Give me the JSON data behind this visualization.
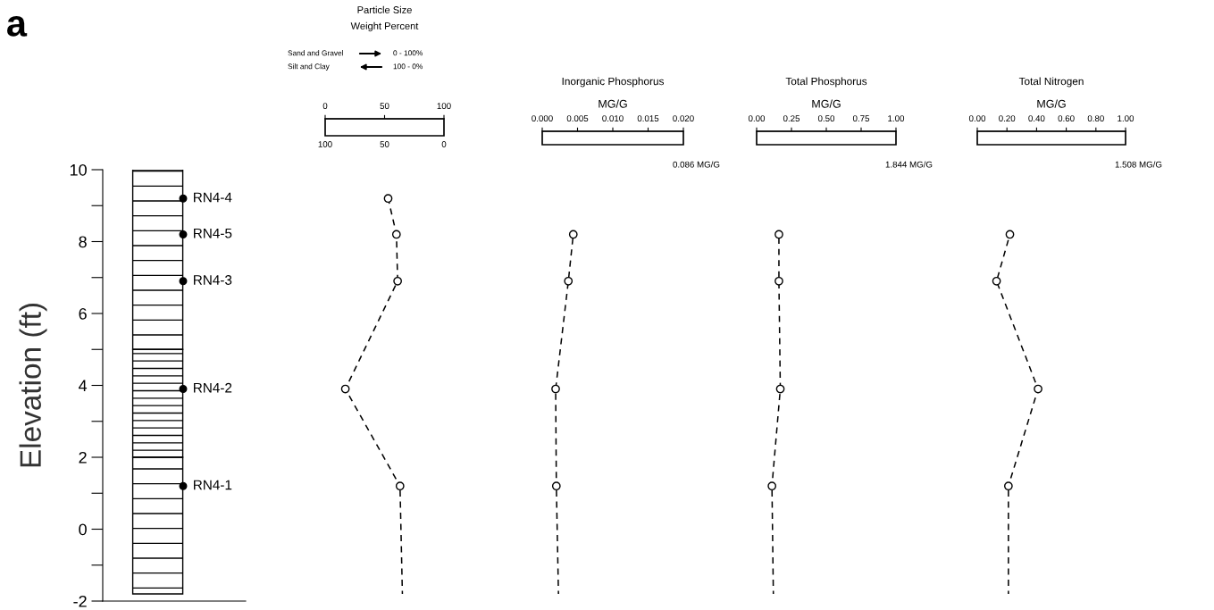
{
  "chart_data": [
    {
      "type": "scatter",
      "ylabel": "Elevation (ft)",
      "ylim": [
        -2,
        10
      ],
      "tick_labels": "y",
      "marker": "circle",
      "yticks": [
        -2,
        {
          "value": -1,
          "label": null
        },
        0,
        {
          "value": 1,
          "label": null
        },
        2,
        {
          "value": 3,
          "label": null
        },
        4,
        {
          "value": 5,
          "label": null
        },
        6,
        {
          "value": 7,
          "label": null
        },
        8,
        {
          "value": 9,
          "label": null
        },
        10
      ],
      "bands": [
        {
          "axis": "y",
          "from": -1.8,
          "to": 2,
          "color": "#000000"
        },
        {
          "axis": "y",
          "from": 2,
          "to": 5,
          "color": "#000000"
        },
        {
          "axis": "y",
          "from": 5,
          "to": 10,
          "color": "#000000"
        }
      ],
      "categories": [
        null
      ],
      "series": [
        {
          "color": "#000000",
          "x": [
            null,
            null,
            null,
            null,
            null
          ],
          "values": [
            9.2,
            8.2,
            6.9,
            3.9,
            1.2
          ]
        }
      ],
      "annotations": [
        "a",
        "RN4-4",
        "RN4-5",
        "RN4-3",
        "RN4-2",
        "RN4-1"
      ]
    },
    {
      "type": "line",
      "title": "Particle Size",
      "subtitle": "Weight Percent",
      "ylim": [
        -2,
        10
      ],
      "tick_labels": "x",
      "marker": "circle",
      "line_style": "dashed",
      "xlim": [
        0,
        100
      ],
      "xticks": [
        0,
        50,
        100
      ],
      "x2lim": [
        100,
        0
      ],
      "x2ticks": [
        100,
        50,
        0
      ],
      "annotations": [
        "Sand and Gravel",
        "0 - 100%",
        "Silt and Clay",
        "100 - 0%"
      ],
      "series": [
        {
          "color": "#000000",
          "x": [
            53,
            60,
            61,
            17,
            63
          ],
          "values": [
            9.2,
            8.2,
            6.9,
            3.9,
            1.2
          ]
        },
        {
          "color": "#000000",
          "marker": "none",
          "x": [
            63,
            65
          ],
          "values": [
            1.2,
            -1.8
          ]
        }
      ]
    },
    {
      "type": "line",
      "title": "Inorganic Phosphorus",
      "xlabel": "MG/G",
      "ylim": [
        -2,
        10
      ],
      "tick_labels": "x",
      "marker": "circle",
      "line_style": "dashed",
      "xlim": [
        0,
        0.02
      ],
      "xticks": [
        {
          "value": 0,
          "label": "0.000"
        },
        {
          "value": 0.005,
          "label": "0.005"
        },
        {
          "value": 0.01,
          "label": "0.010"
        },
        {
          "value": 0.015,
          "label": "0.015"
        },
        {
          "value": 0.02,
          "label": "0.020"
        }
      ],
      "annotations": [
        "0.086 MG/G"
      ],
      "series": [
        {
          "color": "#000000",
          "x": [
            0.0044,
            0.0037,
            0.0019,
            0.002
          ],
          "values": [
            8.2,
            6.9,
            3.9,
            1.2
          ]
        },
        {
          "color": "#000000",
          "marker": "none",
          "x": [
            0.002,
            0.0023
          ],
          "values": [
            1.2,
            -1.8
          ]
        }
      ]
    },
    {
      "type": "line",
      "title": "Total Phosphorus",
      "xlabel": "MG/G",
      "ylim": [
        -2,
        10
      ],
      "tick_labels": "x",
      "marker": "circle",
      "line_style": "dashed",
      "xlim": [
        0,
        1
      ],
      "xticks": [
        {
          "value": 0,
          "label": "0.00"
        },
        {
          "value": 0.25,
          "label": "0.25"
        },
        {
          "value": 0.5,
          "label": "0.50"
        },
        {
          "value": 0.75,
          "label": "0.75"
        },
        {
          "value": 1,
          "label": "1.00"
        }
      ],
      "annotations": [
        "1.844 MG/G"
      ],
      "series": [
        {
          "color": "#000000",
          "x": [
            0.16,
            0.16,
            0.17,
            0.11
          ],
          "values": [
            8.2,
            6.9,
            3.9,
            1.2
          ]
        },
        {
          "color": "#000000",
          "marker": "none",
          "x": [
            0.11,
            0.12
          ],
          "values": [
            1.2,
            -1.8
          ]
        }
      ]
    },
    {
      "type": "line",
      "title": "Total Nitrogen",
      "xlabel": "MG/G",
      "ylim": [
        -2,
        10
      ],
      "tick_labels": "x",
      "marker": "circle",
      "line_style": "dashed",
      "xlim": [
        0,
        1
      ],
      "xticks": [
        {
          "value": 0,
          "label": "0.00"
        },
        {
          "value": 0.2,
          "label": "0.20"
        },
        {
          "value": 0.4,
          "label": "0.40"
        },
        {
          "value": 0.6,
          "label": "0.60"
        },
        {
          "value": 0.8,
          "label": "0.80"
        },
        {
          "value": 1,
          "label": "1.00"
        }
      ],
      "annotations": [
        "1.508 MG/G"
      ],
      "series": [
        {
          "color": "#000000",
          "x": [
            0.22,
            0.13,
            0.41,
            0.21
          ],
          "values": [
            8.2,
            6.9,
            3.9,
            1.2
          ]
        },
        {
          "color": "#000000",
          "marker": "none",
          "x": [
            0.21,
            0.21
          ],
          "values": [
            1.2,
            -1.8
          ]
        }
      ]
    }
  ]
}
